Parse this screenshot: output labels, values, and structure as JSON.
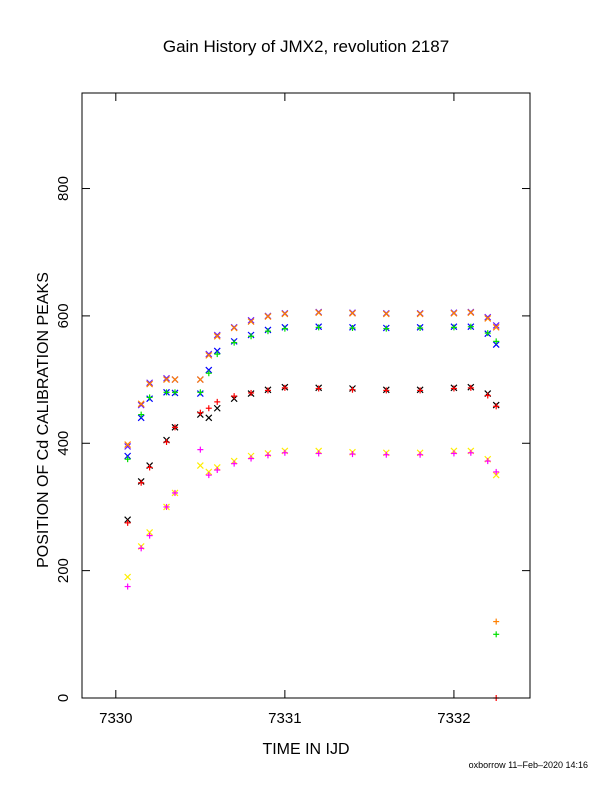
{
  "chart_data": {
    "type": "scatter",
    "title": "Gain History of JMX2, revolution 2187",
    "xlabel": "TIME IN IJD",
    "ylabel": "POSITION OF Cd CALIBRATION PEAKS",
    "credit": "oxborrow 11–Feb–2020 14:16",
    "xlim": [
      7329.8,
      7332.45
    ],
    "ylim": [
      0,
      950
    ],
    "xticks": [
      7330,
      7331,
      7332
    ],
    "xtick_labels": [
      "7330",
      "7331",
      "7332"
    ],
    "yticks": [
      0,
      200,
      400,
      600,
      800
    ],
    "ytick_labels": [
      "0",
      "200",
      "400",
      "600",
      "800"
    ],
    "grid": false,
    "legend": "none",
    "series": [
      {
        "color": "#6a1bff",
        "marker": "x",
        "x": [
          7330.07,
          7330.15,
          7330.2,
          7330.3,
          7330.35,
          7330.5,
          7330.55,
          7330.6,
          7330.7,
          7330.8,
          7330.9,
          7331.0,
          7331.2,
          7331.4,
          7331.6,
          7331.8,
          7332.0,
          7332.1,
          7332.2,
          7332.25
        ],
        "y": [
          395,
          460,
          495,
          502,
          500,
          500,
          540,
          570,
          582,
          593,
          600,
          604,
          606,
          605,
          604,
          604,
          605,
          606,
          598,
          585
        ]
      },
      {
        "color": "#ff8000",
        "marker": "x",
        "x": [
          7330.07,
          7330.15,
          7330.2,
          7330.3,
          7330.35,
          7330.5,
          7330.55,
          7330.6,
          7330.7,
          7330.8,
          7330.9,
          7331.0,
          7331.2,
          7331.4,
          7331.6,
          7331.8,
          7332.0,
          7332.1,
          7332.2,
          7332.25
        ],
        "y": [
          398,
          462,
          493,
          500,
          500,
          500,
          538,
          568,
          581,
          591,
          599,
          603,
          605,
          604,
          603,
          603,
          604,
          605,
          596,
          582
        ]
      },
      {
        "color": "#0000ff",
        "marker": "x",
        "x": [
          7330.07,
          7330.15,
          7330.2,
          7330.3,
          7330.35,
          7330.5,
          7330.55,
          7330.6,
          7330.7,
          7330.8,
          7330.9,
          7331.0,
          7331.2,
          7331.4,
          7331.6,
          7331.8,
          7332.0,
          7332.1,
          7332.2,
          7332.25
        ],
        "y": [
          380,
          440,
          470,
          480,
          479,
          478,
          515,
          545,
          560,
          570,
          578,
          582,
          583,
          582,
          581,
          582,
          583,
          583,
          572,
          555
        ]
      },
      {
        "color": "#00e000",
        "marker": "+",
        "x": [
          7330.07,
          7330.15,
          7330.2,
          7330.3,
          7330.35,
          7330.5,
          7330.55,
          7330.6,
          7330.7,
          7330.8,
          7330.9,
          7331.0,
          7331.2,
          7331.4,
          7331.6,
          7331.8,
          7332.0,
          7332.1,
          7332.2,
          7332.25,
          7332.25
        ],
        "y": [
          375,
          445,
          472,
          480,
          480,
          480,
          510,
          540,
          558,
          568,
          576,
          580,
          582,
          581,
          580,
          581,
          582,
          583,
          573,
          560,
          100
        ]
      },
      {
        "color": "#000000",
        "marker": "x",
        "x": [
          7330.07,
          7330.15,
          7330.2,
          7330.3,
          7330.35,
          7330.5,
          7330.55,
          7330.6,
          7330.7,
          7330.8,
          7330.9,
          7331.0,
          7331.2,
          7331.4,
          7331.6,
          7331.8,
          7332.0,
          7332.1,
          7332.2,
          7332.25
        ],
        "y": [
          280,
          340,
          365,
          405,
          425,
          445,
          440,
          455,
          470,
          478,
          484,
          488,
          487,
          486,
          484,
          484,
          487,
          488,
          478,
          460
        ]
      },
      {
        "color": "#ff0000",
        "marker": "+",
        "x": [
          7330.07,
          7330.15,
          7330.2,
          7330.3,
          7330.35,
          7330.5,
          7330.55,
          7330.6,
          7330.7,
          7330.8,
          7330.9,
          7331.0,
          7331.2,
          7331.4,
          7331.6,
          7331.8,
          7332.0,
          7332.1,
          7332.2,
          7332.25
        ],
        "y": [
          275,
          338,
          362,
          402,
          425,
          448,
          455,
          465,
          474,
          479,
          483,
          487,
          486,
          484,
          483,
          483,
          486,
          487,
          475,
          458
        ]
      },
      {
        "color": "#ffee00",
        "marker": "x",
        "x": [
          7330.07,
          7330.15,
          7330.2,
          7330.3,
          7330.35,
          7330.5,
          7330.55,
          7330.6,
          7330.7,
          7330.8,
          7330.9,
          7331.0,
          7331.2,
          7331.4,
          7331.6,
          7331.8,
          7332.0,
          7332.1,
          7332.2,
          7332.25
        ],
        "y": [
          190,
          238,
          260,
          300,
          322,
          365,
          355,
          362,
          372,
          380,
          384,
          388,
          388,
          386,
          385,
          385,
          388,
          388,
          375,
          350
        ]
      },
      {
        "color": "#ff00ff",
        "marker": "+",
        "x": [
          7330.07,
          7330.15,
          7330.2,
          7330.3,
          7330.35,
          7330.5,
          7330.55,
          7330.6,
          7330.7,
          7330.8,
          7330.9,
          7331.0,
          7331.2,
          7331.4,
          7331.6,
          7331.8,
          7332.0,
          7332.1,
          7332.2,
          7332.25
        ],
        "y": [
          175,
          235,
          255,
          300,
          322,
          390,
          350,
          358,
          368,
          376,
          381,
          385,
          384,
          383,
          382,
          382,
          384,
          385,
          372,
          355
        ]
      },
      {
        "color": "#ff8000",
        "marker": "+",
        "x": [
          7332.25
        ],
        "y": [
          120
        ]
      },
      {
        "color": "#ff0000",
        "marker": "+",
        "x": [
          7332.25
        ],
        "y": [
          0
        ]
      }
    ]
  }
}
